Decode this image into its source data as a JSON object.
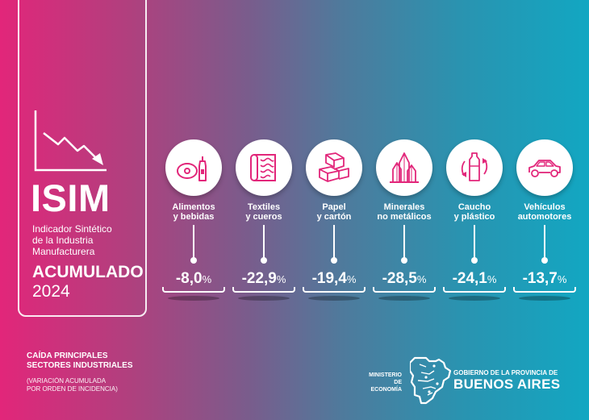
{
  "header": {
    "title": "ISIM",
    "subtitle_lines": [
      "Indicador Sintético",
      "de la Industria",
      "Manufacturera"
    ],
    "period_label": "ACUMULADO",
    "year": "2024",
    "trend_icon": "trend-down-arrow-icon"
  },
  "sectors": [
    {
      "lines": [
        "Alimentos",
        "y bebidas"
      ],
      "value": "-8,0",
      "unit": "%",
      "icon": "food-beverage-icon"
    },
    {
      "lines": [
        "Textiles",
        "y cueros"
      ],
      "value": "-22,9",
      "unit": "%",
      "icon": "textile-roll-icon"
    },
    {
      "lines": [
        "Papel",
        "y cartón"
      ],
      "value": "-19,4",
      "unit": "%",
      "icon": "cardboard-boxes-icon"
    },
    {
      "lines": [
        "Minerales",
        "no metálicos"
      ],
      "value": "-28,5",
      "unit": "%",
      "icon": "crystals-icon"
    },
    {
      "lines": [
        "Caucho",
        "y plástico"
      ],
      "value": "-24,1",
      "unit": "%",
      "icon": "recycle-bottle-icon"
    },
    {
      "lines": [
        "Vehículos",
        "automotores"
      ],
      "value": "-13,7",
      "unit": "%",
      "icon": "car-icon"
    }
  ],
  "footer": {
    "title_lines": [
      "CAÍDA PRINCIPALES",
      "SECTORES INDUSTRIALES"
    ],
    "note_lines": [
      "(VARIACIÓN ACUMULADA",
      "POR ORDEN DE INCIDENCIA)"
    ]
  },
  "logos": {
    "ministry_lines": [
      "MINISTERIO DE",
      "ECONOMÍA"
    ],
    "government_line": "GOBIERNO DE LA PROVINCIA DE",
    "province_name": "BUENOS AIRES",
    "map_icon": "buenos-aires-map-icon"
  },
  "colors": {
    "gradient_left": "#e2267a",
    "gradient_mid": "#4f7a9c",
    "gradient_right": "#12a7c2",
    "icon_pink": "#e2267a",
    "text": "#ffffff"
  }
}
